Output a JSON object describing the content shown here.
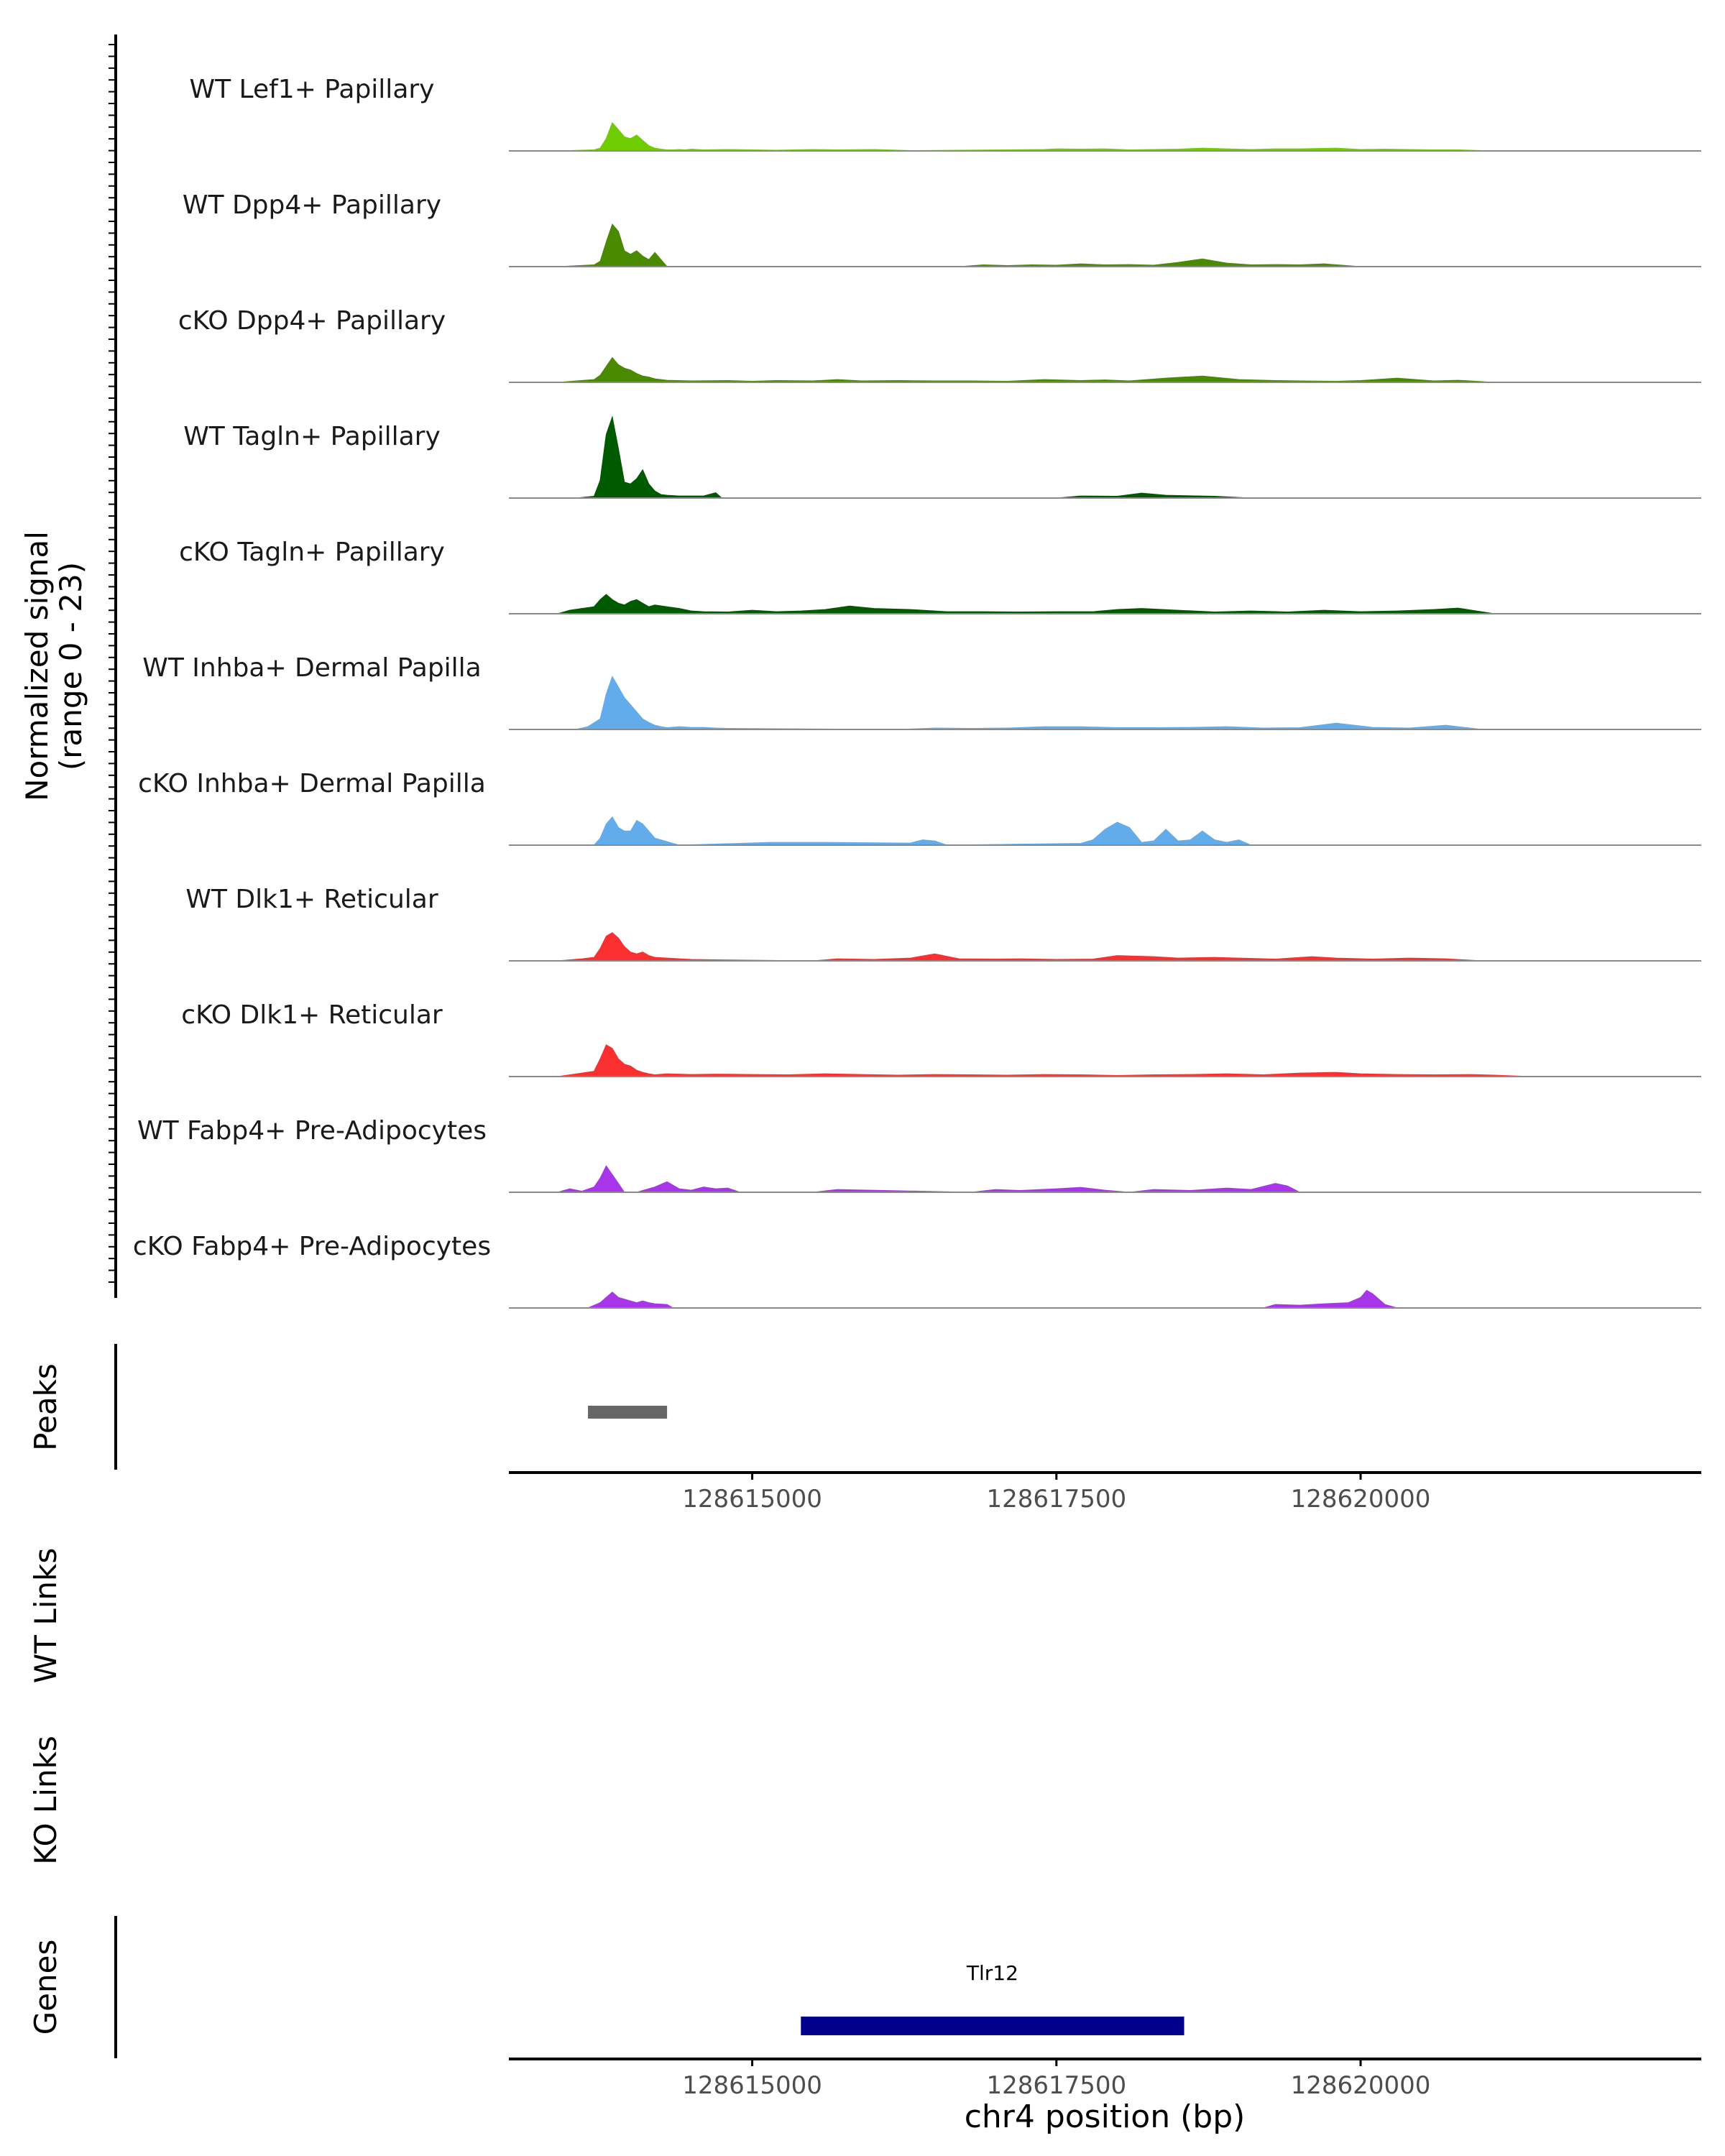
{
  "chart_data": {
    "type": "area",
    "genome": "chr4",
    "xlim": [
      128613000,
      128622800
    ],
    "ylim": [
      0,
      23
    ],
    "y_axis_title": "Normalized signal",
    "y_axis_subtitle": "(range 0 - 23)",
    "x_axis_title": "chr4 position (bp)",
    "x_ticks": [
      {
        "value": 128615000,
        "label": "128615000"
      },
      {
        "value": 128617500,
        "label": "128617500"
      },
      {
        "value": 128620000,
        "label": "128620000"
      }
    ],
    "tracks": [
      {
        "label": "WT Lef1+ Papillary",
        "color": "#6ecc00",
        "x": [
          128613400,
          128613700,
          128613750,
          128613800,
          128613850,
          128613900,
          128613950,
          128614000,
          128614050,
          128614100,
          128614150,
          128614200,
          128614250,
          128614300,
          128614350,
          128614400,
          128614450,
          128614500,
          128614600,
          128614800,
          128615000,
          128615200,
          128615500,
          128615700,
          128616000,
          128616300,
          128617400,
          128617500,
          128617700,
          128617900,
          128618100,
          128618300,
          128618500,
          128618700,
          128618900,
          128619100,
          128619300,
          128619500,
          128619800,
          128620000,
          128620200,
          128620600,
          128620800,
          128621100
        ],
        "values": [
          0,
          0.3,
          0.8,
          3.5,
          8,
          6,
          4,
          3.5,
          4.5,
          3,
          1.5,
          0.8,
          0.5,
          0.3,
          0.3,
          0.4,
          0.3,
          0.5,
          0.3,
          0.4,
          0.3,
          0.2,
          0.4,
          0.3,
          0.4,
          0.1,
          0.4,
          0.6,
          0.5,
          0.6,
          0.3,
          0.4,
          0.5,
          0.8,
          0.6,
          0.4,
          0.6,
          0.6,
          0.8,
          0.4,
          0.5,
          0.3,
          0.3,
          0
        ]
      },
      {
        "label": "WT Dpp4+ Papillary",
        "color": "#4a8a00",
        "x": [
          128613400,
          128613700,
          128613750,
          128613800,
          128613850,
          128613900,
          128613950,
          128614000,
          128614050,
          128614100,
          128614150,
          128614200,
          128614250,
          128614300,
          128616700,
          128616900,
          128617100,
          128617300,
          128617500,
          128617700,
          128617900,
          128618100,
          128618300,
          128618500,
          128618700,
          128618900,
          128619100,
          128619300,
          128619500,
          128619700,
          128620000
        ],
        "values": [
          0,
          0.5,
          1.5,
          7,
          12,
          10,
          4.5,
          3.5,
          4.5,
          3,
          2,
          4,
          2,
          0,
          0,
          0.5,
          0.3,
          0.5,
          0.4,
          0.8,
          0.5,
          0.6,
          0.4,
          1.2,
          2.2,
          1,
          0.5,
          0.6,
          0.5,
          0.8,
          0
        ]
      },
      {
        "label": "cKO Dpp4+ Papillary",
        "color": "#4a8a00",
        "x": [
          128613400,
          128613700,
          128613750,
          128613800,
          128613850,
          128613900,
          128613950,
          128614000,
          128614050,
          128614100,
          128614150,
          128614200,
          128614300,
          128614500,
          128614800,
          128615000,
          128615200,
          128615500,
          128615700,
          128615900,
          128616200,
          128616500,
          128616800,
          128617100,
          128617400,
          128617700,
          128617900,
          128618100,
          128618400,
          128618700,
          128619000,
          128619300,
          128619500,
          128619800,
          128620000,
          128620300,
          128620600,
          128620800,
          128621100
        ],
        "values": [
          0,
          0.8,
          2,
          4.5,
          7,
          5,
          4,
          3.5,
          2.5,
          1.8,
          1.5,
          1,
          0.6,
          0.4,
          0.5,
          0.3,
          0.5,
          0.4,
          0.8,
          0.4,
          0.5,
          0.4,
          0.4,
          0.3,
          0.8,
          0.5,
          0.7,
          0.4,
          1.2,
          1.8,
          0.8,
          0.5,
          0.4,
          0.3,
          0.5,
          1.2,
          0.4,
          0.6,
          0
        ]
      },
      {
        "label": "WT Tagln+ Papillary",
        "color": "#005a00",
        "x": [
          128613550,
          128613700,
          128613750,
          128613800,
          128613850,
          128613900,
          128613950,
          128614000,
          128614050,
          128614100,
          128614150,
          128614200,
          128614250,
          128614300,
          128614400,
          128614600,
          128614700,
          128614750,
          128617500,
          128617700,
          128618000,
          128618200,
          128618400,
          128618800,
          128619100
        ],
        "values": [
          0,
          0.5,
          5,
          18,
          23,
          14,
          4.5,
          4,
          5.5,
          8,
          4,
          2,
          1,
          0.8,
          0.6,
          0.6,
          1.5,
          0,
          0,
          0.6,
          0.5,
          1.4,
          0.8,
          0.5,
          0
        ]
      },
      {
        "label": "cKO Tagln+ Papillary",
        "color": "#005a00",
        "x": [
          128613400,
          128613500,
          128613600,
          128613700,
          128613750,
          128613800,
          128613850,
          128613900,
          128613950,
          128614000,
          128614050,
          128614100,
          128614150,
          128614200,
          128614300,
          128614400,
          128614500,
          128614600,
          128614800,
          128615000,
          128615200,
          128615400,
          128615600,
          128615800,
          128616000,
          128616300,
          128616600,
          128616900,
          128617200,
          128617500,
          128617800,
          128618000,
          128618200,
          128618500,
          128618800,
          128619100,
          128619400,
          128619700,
          128620000,
          128620300,
          128620600,
          128620800,
          128621100
        ],
        "values": [
          0,
          1,
          1.5,
          2,
          4,
          5.5,
          4,
          3,
          2.5,
          3.5,
          4,
          3,
          2,
          2.5,
          2,
          1.5,
          0.8,
          0.6,
          0.5,
          1,
          0.6,
          0.8,
          1.2,
          2.2,
          1.5,
          1.2,
          0.6,
          0.6,
          0.5,
          0.6,
          0.6,
          1.2,
          1.5,
          1,
          0.5,
          0.8,
          0.5,
          1,
          0.6,
          0.8,
          1.2,
          1.6,
          0
        ]
      },
      {
        "label": "WT Inhba+ Dermal Papilla",
        "color": "#63aceb",
        "x": [
          128613550,
          128613650,
          128613750,
          128613800,
          128613850,
          128613900,
          128613950,
          128614000,
          128614050,
          128614100,
          128614150,
          128614200,
          128614250,
          128614300,
          128614400,
          128614500,
          128614600,
          128614700,
          128614800,
          128616200,
          128616500,
          128616800,
          128617100,
          128617400,
          128617700,
          128618000,
          128618300,
          128618600,
          128618900,
          128619200,
          128619500,
          128619800,
          128620100,
          128620400,
          128620700,
          128621000
        ],
        "values": [
          0,
          0.8,
          3,
          10,
          15,
          12,
          9,
          7,
          5,
          3,
          2,
          1.2,
          0.8,
          0.5,
          0.8,
          0.6,
          0.6,
          0.4,
          0.3,
          0,
          0.4,
          0.3,
          0.4,
          0.8,
          0.8,
          0.5,
          0.5,
          0.6,
          0.8,
          0.4,
          0.5,
          1.8,
          0.6,
          0.4,
          1.2,
          0
        ]
      },
      {
        "label": "cKO Inhba+ Dermal Papilla",
        "color": "#63aceb",
        "x": [
          128613700,
          128613750,
          128613800,
          128613850,
          128613900,
          128613950,
          128614000,
          128614050,
          128614100,
          128614150,
          128614200,
          128614250,
          128614300,
          128614400,
          128615150,
          128615250,
          128615500,
          128615600,
          128616300,
          128616400,
          128616500,
          128616600,
          128617700,
          128617800,
          128617900,
          128618000,
          128618100,
          128618200,
          128618300,
          128618400,
          128618500,
          128618600,
          128618700,
          128618800,
          128618900,
          128619000,
          128619100
        ],
        "values": [
          0,
          2,
          6,
          8,
          5,
          4,
          4,
          7,
          6,
          4,
          2,
          1.5,
          1,
          0,
          0.8,
          0.8,
          0.8,
          0.8,
          0.6,
          1.5,
          1.2,
          0,
          0.5,
          1.5,
          4.5,
          6.5,
          5,
          0.8,
          1.2,
          4.5,
          1.2,
          1.5,
          4,
          1.5,
          0.8,
          1.5,
          0
        ]
      },
      {
        "label": "WT Dlk1+ Reticular",
        "color": "#fa3030",
        "x": [
          128613400,
          128613600,
          128613700,
          128613750,
          128613800,
          128613850,
          128613900,
          128613950,
          128614000,
          128614050,
          128614100,
          128614150,
          128614200,
          128614300,
          128614500,
          128614700,
          128615500,
          128615700,
          128616000,
          128616300,
          128616500,
          128616700,
          128617000,
          128617200,
          128617500,
          128617800,
          128618000,
          128618300,
          128618500,
          128618800,
          128619000,
          128619300,
          128619600,
          128619800,
          128620100,
          128620400,
          128620700,
          128621000
        ],
        "values": [
          0,
          0.6,
          1,
          3.5,
          7,
          8,
          6.5,
          4,
          2.5,
          2,
          2.5,
          1.5,
          1,
          0.8,
          0.4,
          0.3,
          0,
          0.6,
          0.4,
          0.8,
          2,
          0.6,
          0.5,
          0.6,
          0.4,
          0.5,
          1.5,
          1.2,
          0.8,
          1,
          0.8,
          0.5,
          1.2,
          0.8,
          0.5,
          0.8,
          0.6,
          0
        ]
      },
      {
        "label": "cKO Dlk1+ Reticular",
        "color": "#fa3030",
        "x": [
          128613400,
          128613600,
          128613700,
          128613750,
          128613800,
          128613850,
          128613900,
          128613950,
          128614000,
          128614050,
          128614100,
          128614150,
          128614200,
          128614300,
          128614500,
          128614700,
          128615000,
          128615300,
          128615600,
          128615900,
          128616200,
          128616500,
          128616800,
          128617100,
          128617400,
          128617700,
          128618000,
          128618300,
          128618600,
          128618900,
          128619200,
          128619500,
          128619800,
          128620000,
          128620300,
          128620600,
          128620900,
          128621100,
          128621400
        ],
        "values": [
          0,
          1,
          1.5,
          5,
          9,
          8,
          5,
          3.5,
          3,
          1.8,
          1.2,
          0.8,
          0.5,
          0.8,
          0.6,
          0.7,
          0.6,
          0.5,
          0.8,
          0.6,
          0.4,
          0.6,
          0.5,
          0.4,
          0.6,
          0.5,
          0.3,
          0.5,
          0.6,
          0.8,
          0.5,
          1,
          1.2,
          0.8,
          0.6,
          0.5,
          0.6,
          0.4,
          0
        ]
      },
      {
        "label": "WT Fabp4+ Pre-Adipocytes",
        "color": "#a935eb",
        "x": [
          128613400,
          128613500,
          128613600,
          128613700,
          128613750,
          128613800,
          128613850,
          128613900,
          128613950,
          128614000,
          128614050,
          128614100,
          128614200,
          128614300,
          128614400,
          128614500,
          128614600,
          128614700,
          128614800,
          128614900,
          128615500,
          128615700,
          128616800,
          128617000,
          128617200,
          128617500,
          128617700,
          128617900,
          128618100,
          128618300,
          128618600,
          128618900,
          128619100,
          128619300,
          128619400,
          128619500
        ],
        "values": [
          0,
          1,
          0.3,
          1.5,
          4,
          7.5,
          5,
          2.5,
          0,
          0,
          0,
          0.5,
          1.5,
          3,
          1,
          0.6,
          1.5,
          1,
          1.2,
          0,
          0,
          0.8,
          0,
          0.8,
          0.5,
          1,
          1.4,
          0.6,
          0,
          0.8,
          0.5,
          1.2,
          0.8,
          2.5,
          1.8,
          0
        ]
      },
      {
        "label": "cKO Fabp4+ Pre-Adipocytes",
        "color": "#a935eb",
        "x": [
          128613650,
          128613750,
          128613800,
          128613850,
          128613900,
          128613950,
          128614000,
          128614050,
          128614100,
          128614150,
          128614200,
          128614300,
          128614350,
          128619200,
          128619300,
          128619500,
          128619700,
          128619900,
          128620000,
          128620050,
          128620100,
          128620200,
          128620300
        ],
        "values": [
          0,
          1.5,
          3,
          4.5,
          3,
          2.5,
          2,
          1.5,
          2,
          1.5,
          1.2,
          1,
          0,
          0,
          1,
          0.8,
          1.2,
          1.5,
          3,
          5,
          4,
          1,
          0
        ]
      }
    ],
    "peaks": {
      "track_label": "Peaks",
      "intervals": [
        {
          "start": 128613650,
          "end": 128614300
        }
      ]
    },
    "links": [
      {
        "track_label": "WT Links",
        "links": []
      },
      {
        "track_label": "KO Links",
        "links": []
      }
    ],
    "genes": {
      "track_label": "Genes",
      "items": [
        {
          "name": "Tlr12",
          "start": 128615400,
          "end": 128618550,
          "color": "#00008b"
        }
      ]
    }
  }
}
